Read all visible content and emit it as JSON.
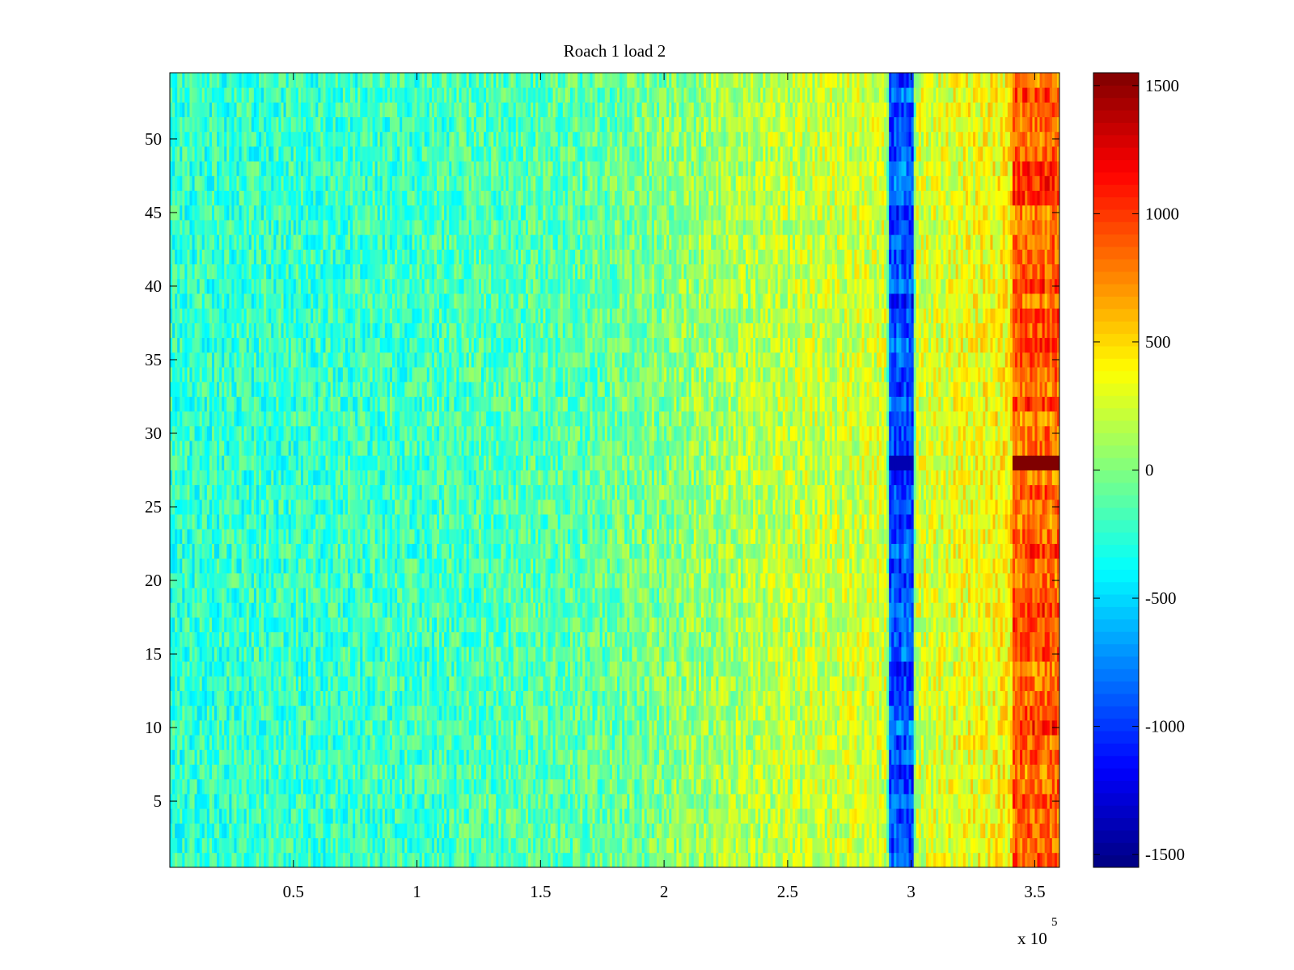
{
  "chart_data": {
    "type": "heatmap",
    "title": "Roach 1 load 2",
    "xlabel": "",
    "ylabel": "",
    "x_range": [
      0,
      360000
    ],
    "y_range": [
      1,
      54
    ],
    "xlim": [
      0,
      360000
    ],
    "ylim": [
      0.5,
      54.5
    ],
    "x_ticks": [
      50000,
      100000,
      150000,
      200000,
      250000,
      300000,
      350000
    ],
    "x_tick_labels": [
      "0.5",
      "1",
      "1.5",
      "2",
      "2.5",
      "3",
      "3.5"
    ],
    "x_exponent_label": "x 10",
    "x_exponent_power": "5",
    "y_ticks": [
      5,
      10,
      15,
      20,
      25,
      30,
      35,
      40,
      45,
      50
    ],
    "y_tick_labels": [
      "5",
      "10",
      "15",
      "20",
      "25",
      "30",
      "35",
      "40",
      "45",
      "50"
    ],
    "colormap": "jet",
    "clim": [
      -1550,
      1550
    ],
    "colorbar": {
      "ticks": [
        -1500,
        -1000,
        -500,
        0,
        500,
        1000,
        1500
      ],
      "tick_labels": [
        "-1500",
        "-1000",
        "-500",
        "0",
        "500",
        "1000",
        "1500"
      ]
    },
    "trend": [
      {
        "x": 0,
        "value": -250
      },
      {
        "x": 100000,
        "value": -200
      },
      {
        "x": 175000,
        "value": -100
      },
      {
        "x": 210000,
        "value": 50
      },
      {
        "x": 250000,
        "value": 200
      },
      {
        "x": 290000,
        "value": 250
      },
      {
        "x": 292000,
        "value": -900
      },
      {
        "x": 300000,
        "value": -900
      },
      {
        "x": 302000,
        "value": 250
      },
      {
        "x": 340000,
        "value": 400
      },
      {
        "x": 342000,
        "value": 850
      },
      {
        "x": 360000,
        "value": 900
      }
    ],
    "features": [
      {
        "label": "low band",
        "x_range": [
          291000,
          301000
        ],
        "value": -900
      },
      {
        "label": "high band",
        "x_range": [
          341000,
          360000
        ],
        "value": 900
      },
      {
        "label": "hot row",
        "x_range": [
          341000,
          360000
        ],
        "y": 28,
        "value": 1600
      },
      {
        "label": "cold row",
        "x_range": [
          291000,
          301000
        ],
        "y": 28,
        "value": -1400
      }
    ]
  }
}
